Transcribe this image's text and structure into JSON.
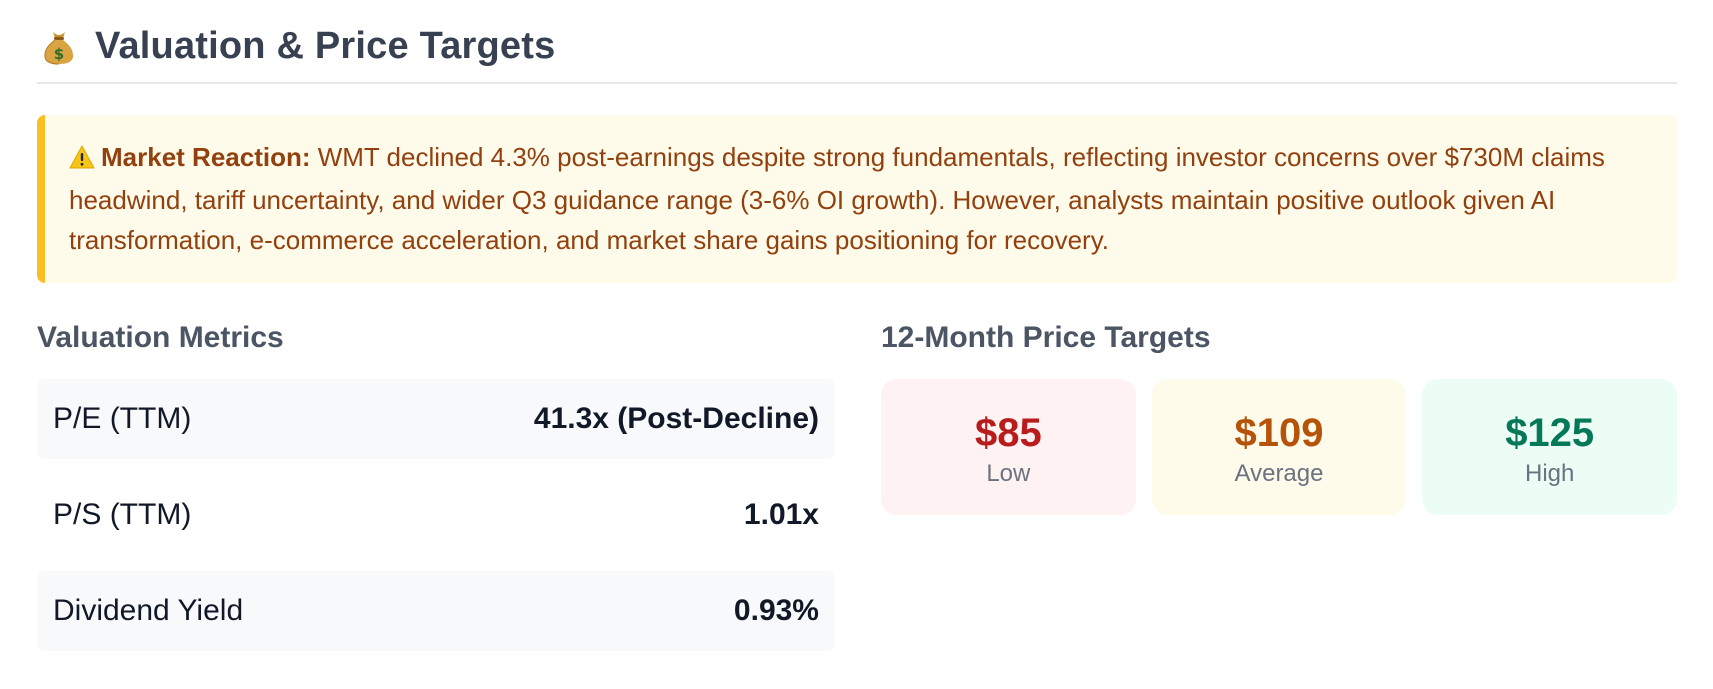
{
  "section": {
    "icon": "money-bag-icon",
    "title": "Valuation & Price Targets"
  },
  "alert": {
    "icon": "warning-icon",
    "label": "Market Reaction:",
    "text": " WMT declined 4.3% post-earnings despite strong fundamentals, reflecting investor concerns over $730M claims headwind, tariff uncertainty, and wider Q3 guidance range (3-6% OI growth). However, analysts maintain positive outlook given AI transformation, e-commerce acceleration, and market share gains positioning for recovery."
  },
  "valuation": {
    "title": "Valuation Metrics",
    "metrics": [
      {
        "label": "P/E (TTM)",
        "value": "41.3x (Post-Decline)"
      },
      {
        "label": "P/S (TTM)",
        "value": "1.01x"
      },
      {
        "label": "Dividend Yield",
        "value": "0.93%"
      }
    ]
  },
  "price_targets": {
    "title": "12-Month Price Targets",
    "cards": [
      {
        "value": "$85",
        "label": "Low",
        "color": "#b91c1c"
      },
      {
        "value": "$109",
        "label": "Average",
        "color": "#b45309"
      },
      {
        "value": "$125",
        "label": "High",
        "color": "#047857"
      }
    ]
  },
  "colors": {
    "alert_border": "#fbbf24",
    "alert_text": "#92400e",
    "alert_bg": "#fffbeb"
  }
}
